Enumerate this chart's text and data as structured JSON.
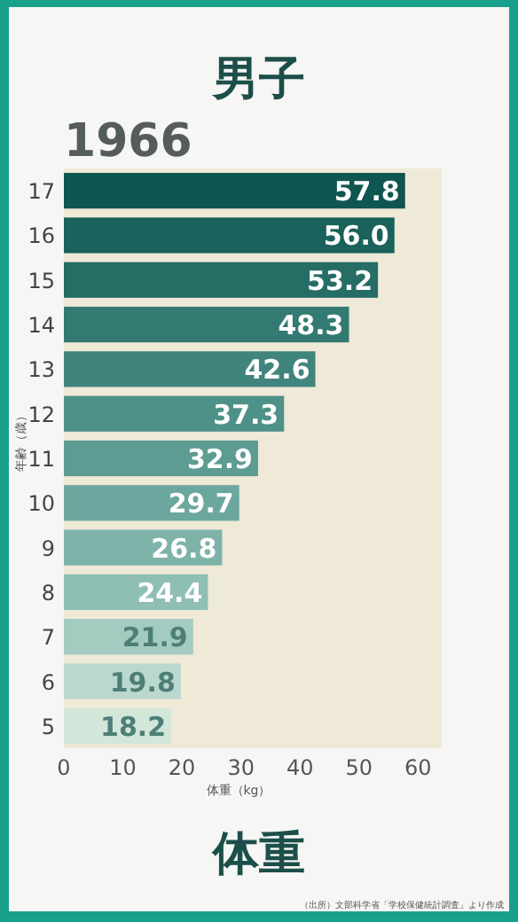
{
  "chart_data": {
    "type": "bar",
    "orientation": "horizontal",
    "title": "男子",
    "subtitle": "1966",
    "xlabel": "体重（kg）",
    "ylabel": "年齢（歳）",
    "categories": [
      "17",
      "16",
      "15",
      "14",
      "13",
      "12",
      "11",
      "10",
      "9",
      "8",
      "7",
      "6",
      "5"
    ],
    "values": [
      57.8,
      56.0,
      53.2,
      48.3,
      42.6,
      37.3,
      32.9,
      29.7,
      26.8,
      24.4,
      21.9,
      19.8,
      18.2
    ],
    "value_labels": [
      "57.8",
      "56.0",
      "53.2",
      "48.3",
      "42.6",
      "37.3",
      "32.9",
      "29.7",
      "26.8",
      "24.4",
      "21.9",
      "19.8",
      "18.2"
    ],
    "colors": [
      "#0f5650",
      "#1a625b",
      "#266d66",
      "#337a72",
      "#40857d",
      "#4d9188",
      "#5c9c93",
      "#6ba79e",
      "#7db3a9",
      "#8fbfb4",
      "#a3cbc0",
      "#bad8cd",
      "#d3e6da"
    ],
    "xlim": [
      0,
      64
    ],
    "xticks": [
      0,
      10,
      20,
      30,
      40,
      50,
      60
    ],
    "annotations": [
      "体重",
      "（出所）文部科学省「学校保健統計調査」より作成"
    ]
  }
}
